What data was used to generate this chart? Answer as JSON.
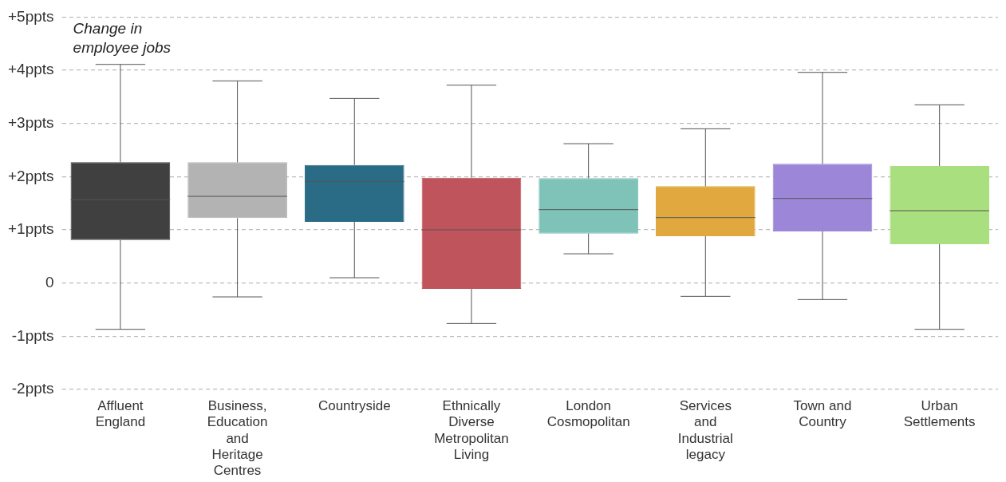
{
  "chart_data": {
    "type": "box",
    "ylabel": "Change in employee jobs",
    "categories": [
      "Affluent England",
      "Business, Education and Heritage Centres",
      "Countryside",
      "Ethnically Diverse Metropolitan Living",
      "London Cosmopolitan",
      "Services and Industrial legacy",
      "Town and Country",
      "Urban Settlements"
    ],
    "colors": [
      "#404040",
      "#b3b3b3",
      "#2a6b85",
      "#c0545c",
      "#7fc3b8",
      "#e0a83e",
      "#9b86d8",
      "#aadf7f"
    ],
    "boxes": [
      {
        "low": -0.87,
        "q1": 0.81,
        "median": 1.57,
        "q3": 2.27,
        "high": 4.11
      },
      {
        "low": -0.26,
        "q1": 1.22,
        "median": 1.63,
        "q3": 2.27,
        "high": 3.8
      },
      {
        "low": 0.1,
        "q1": 1.15,
        "median": 1.91,
        "q3": 2.22,
        "high": 3.47
      },
      {
        "low": -0.76,
        "q1": -0.11,
        "median": 1.0,
        "q3": 1.98,
        "high": 3.72
      },
      {
        "low": 0.55,
        "q1": 0.93,
        "median": 1.38,
        "q3": 1.97,
        "high": 2.62
      },
      {
        "low": -0.25,
        "q1": 0.88,
        "median": 1.23,
        "q3": 1.82,
        "high": 2.9
      },
      {
        "low": -0.31,
        "q1": 0.97,
        "median": 1.59,
        "q3": 2.24,
        "high": 3.96
      },
      {
        "low": -0.87,
        "q1": 0.73,
        "median": 1.36,
        "q3": 2.2,
        "high": 3.35
      }
    ],
    "ylim": [
      -2,
      5
    ],
    "yticks": [
      {
        "value": -2,
        "label": "-2ppts"
      },
      {
        "value": -1,
        "label": "-1ppts"
      },
      0,
      {
        "value": 1,
        "label": "+1ppts"
      },
      {
        "value": 2,
        "label": "+2ppts"
      },
      {
        "value": 3,
        "label": "+3ppts"
      },
      {
        "value": 4,
        "label": "+4ppts"
      },
      {
        "value": 5,
        "label": "+5ppts"
      }
    ],
    "grid": "y",
    "legend": false
  }
}
